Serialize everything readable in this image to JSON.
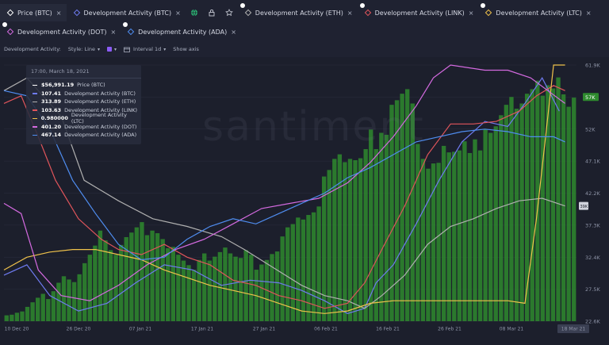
{
  "tabs_row1": [
    {
      "label": "Price (BTC)",
      "color": "#ffffff",
      "corner_dot": false,
      "dark": true
    },
    {
      "label": "Development Activity (BTC)",
      "color": "#6e7bf0",
      "corner_dot": false,
      "dark": false
    },
    {
      "label": "Development Activity (ETH)",
      "color": "#b0b0b0",
      "corner_dot": true,
      "dark": false
    },
    {
      "label": "Development Activity (LINK)",
      "color": "#e0555b",
      "corner_dot": true,
      "dark": false
    },
    {
      "label": "Development Activity (LTC)",
      "color": "#f0c24b",
      "corner_dot": true,
      "dark": false
    }
  ],
  "tabs_row2": [
    {
      "label": "Development Activity (DOT)",
      "color": "#d46ae0",
      "corner_dot": true
    },
    {
      "label": "Development Activity (ADA)",
      "color": "#4f8df0",
      "corner_dot": true
    }
  ],
  "toolbar_icons": [
    "globe-icon",
    "lock-icon",
    "star-icon"
  ],
  "settings": {
    "label": "Development Activity:",
    "style": "Style: Line",
    "interval": "Interval 1d",
    "show_axis": "Show axis"
  },
  "tooltip": {
    "date": "17:00, March 18, 2021",
    "rows": [
      {
        "value": "$56,991.19",
        "label": "Price (BTC)",
        "color": "#ffffff"
      },
      {
        "value": "107.41",
        "label": "Development Activity (BTC)",
        "color": "#6e7bf0"
      },
      {
        "value": "313.89",
        "label": "Development Activity (ETH)",
        "color": "#b0b0b0"
      },
      {
        "value": "103.63",
        "label": "Development Activity (LINK)",
        "color": "#e0555b"
      },
      {
        "value": "0.980000",
        "label": "Development Activity (LTC)",
        "color": "#f0c24b"
      },
      {
        "value": "401.20",
        "label": "Development Activity (DOT)",
        "color": "#d46ae0"
      },
      {
        "value": "467.14",
        "label": "Development Activity (ADA)",
        "color": "#4f8df0"
      }
    ]
  },
  "watermark": "santiment",
  "chart_data": {
    "type": "bar",
    "title": "",
    "x_ticks": [
      "10 Dec 20",
      "26 Dec 20",
      "07 Jan 21",
      "17 Jan 21",
      "27 Jan 21",
      "06 Feb 21",
      "16 Feb 21",
      "26 Feb 21",
      "08 Mar 21",
      "18 Mar 21"
    ],
    "y_ticks": [
      "61.9K",
      "57K",
      "52K",
      "47.1K",
      "42.2K",
      "37.3K",
      "32.4K",
      "27.5K",
      "22.6K"
    ],
    "ylim": [
      22600,
      61900
    ],
    "highlight_price": "57K",
    "side_marker": "39K",
    "bar_color": "#2e8a2e",
    "price_bars": [
      23.5,
      23.6,
      23.9,
      24.1,
      24.8,
      25.5,
      26.2,
      26.8,
      26.0,
      27.2,
      28.5,
      29.5,
      29.0,
      28.6,
      29.8,
      31.5,
      32.8,
      34.2,
      36.5,
      35.0,
      33.5,
      32.8,
      34.3,
      35.5,
      36.2,
      37.0,
      37.8,
      35.8,
      36.5,
      36.1,
      35.2,
      33.8,
      34.0,
      32.8,
      31.9,
      31.2,
      30.5,
      32.0,
      33.0,
      31.9,
      32.5,
      33.2,
      33.9,
      33.0,
      32.5,
      32.3,
      33.5,
      32.8,
      30.5,
      31.3,
      32.0,
      32.9,
      33.3,
      35.6,
      37.0,
      37.5,
      38.5,
      38.2,
      38.9,
      39.3,
      40.2,
      44.8,
      45.8,
      47.5,
      48.2,
      47.0,
      47.5,
      47.3,
      47.6,
      49.0,
      52.0,
      49.0,
      51.5,
      51.2,
      55.8,
      56.5,
      57.5,
      58.2,
      56.0,
      49.8,
      47.5,
      46.0,
      46.8,
      46.9,
      49.5,
      48.5,
      48.6,
      48.8,
      50.2,
      48.4,
      50.5,
      48.8,
      52.0,
      51.5,
      52.5,
      54.2,
      55.8,
      57.0,
      55.2,
      56.0,
      57.5,
      58.2,
      59.5,
      57.2,
      58.8,
      58.3,
      60.0,
      57.4,
      55.5,
      56.9
    ],
    "series": [
      {
        "name": "Development Activity (BTC)",
        "color": "#6e7bf0"
      },
      {
        "name": "Development Activity (ETH)",
        "color": "#b0b0b0"
      },
      {
        "name": "Development Activity (LINK)",
        "color": "#e0555b"
      },
      {
        "name": "Development Activity (LTC)",
        "color": "#f0c24b"
      },
      {
        "name": "Development Activity (DOT)",
        "color": "#d46ae0"
      },
      {
        "name": "Development Activity (ADA)",
        "color": "#4f8df0"
      }
    ]
  }
}
